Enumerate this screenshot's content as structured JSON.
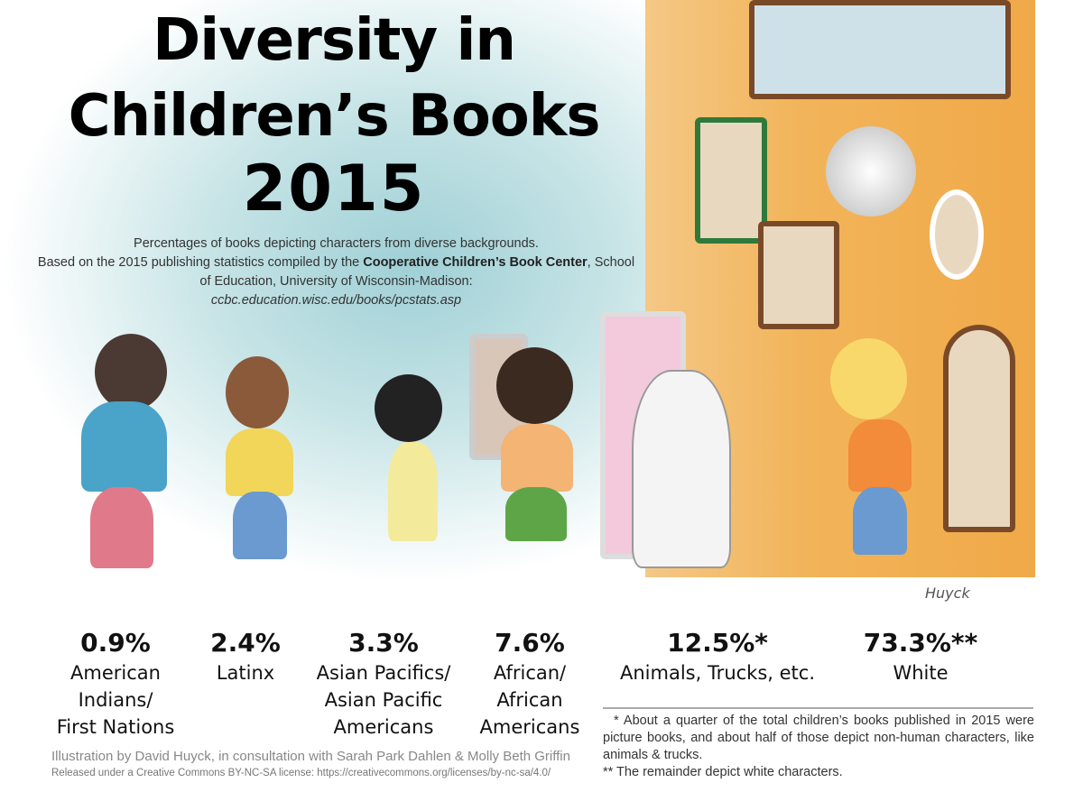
{
  "title": {
    "line1": "Diversity in",
    "line2": "Children’s Books",
    "line3": "2015"
  },
  "subtitle": {
    "line1": "Percentages of books depicting characters from diverse backgrounds.",
    "line2_pre": "Based on the 2015 publishing statistics compiled by the ",
    "org": "Cooperative Children’s Book Center",
    "line3_post": ", School of Education, University of Wisconsin-Madison:",
    "url": "ccbc.education.wisc.edu/books/pcstats.asp"
  },
  "illustration": {
    "signature": "Huyck",
    "colors": {
      "wall": "#f2b45a",
      "wash": "#9fd0d6"
    }
  },
  "stats": [
    {
      "percent": "0.9%",
      "label": [
        "American",
        "Indians/",
        "First Nations"
      ]
    },
    {
      "percent": "2.4%",
      "label": [
        "Latinx"
      ]
    },
    {
      "percent": "3.3%",
      "label": [
        "Asian Pacifics/",
        "Asian Pacific",
        "Americans"
      ]
    },
    {
      "percent": "7.6%",
      "label": [
        "African/",
        "African",
        "Americans"
      ]
    },
    {
      "percent": "12.5%*",
      "label": [
        "Animals, Trucks, etc."
      ]
    },
    {
      "percent": "73.3%**",
      "label": [
        "White"
      ]
    }
  ],
  "notes": {
    "n1": "* About a quarter of the total children’s books published in 2015 were picture books, and about half of those depict non-human characters, like animals & trucks.",
    "n2": "** The remainder depict white characters."
  },
  "credit": "Illustration by David Huyck, in consultation with Sarah Park Dahlen & Molly Beth Griffin",
  "license": "Released under a Creative Commons BY-NC-SA license: https://creativecommons.org/licenses/by-nc-sa/4.0/"
}
